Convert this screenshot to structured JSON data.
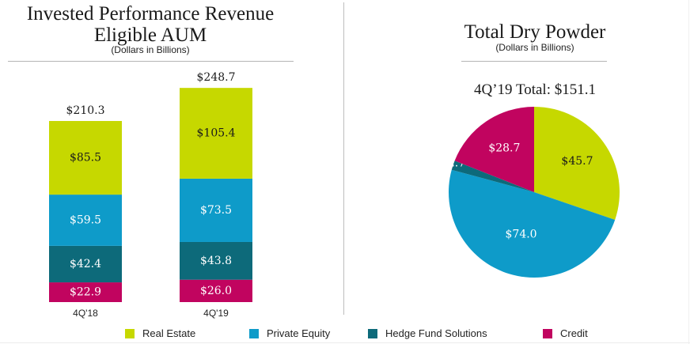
{
  "left_panel": {
    "title_line1": "Invested Performance Revenue",
    "title_line2": "Eligible AUM",
    "subtitle": "(Dollars in Billions)"
  },
  "right_panel": {
    "title": "Total Dry Powder",
    "subtitle": "(Dollars in Billions)",
    "total_label": "4Q’19 Total: $151.1"
  },
  "legend": [
    {
      "label": "Real Estate",
      "color": "#c6d800"
    },
    {
      "label": "Private Equity",
      "color": "#0e9bc9"
    },
    {
      "label": "Hedge Fund Solutions",
      "color": "#0d6a7a"
    },
    {
      "label": "Credit",
      "color": "#c1045f"
    }
  ],
  "chart_data": [
    {
      "type": "bar",
      "stacked": true,
      "title": "Invested Performance Revenue Eligible AUM",
      "subtitle": "(Dollars in Billions)",
      "categories": [
        "4Q'18",
        "4Q'19"
      ],
      "totals": [
        210.3,
        248.7
      ],
      "total_labels": [
        "$210.3",
        "$248.7"
      ],
      "series": [
        {
          "name": "Credit",
          "color": "#c1045f",
          "text_color": "#ffffff",
          "values": [
            22.9,
            26.0
          ],
          "labels": [
            "$22.9",
            "$26.0"
          ]
        },
        {
          "name": "Hedge Fund Solutions",
          "color": "#0d6a7a",
          "text_color": "#ffffff",
          "values": [
            42.4,
            43.8
          ],
          "labels": [
            "$42.4",
            "$43.8"
          ]
        },
        {
          "name": "Private Equity",
          "color": "#0e9bc9",
          "text_color": "#ffffff",
          "values": [
            59.5,
            73.5
          ],
          "labels": [
            "$59.5",
            "$73.5"
          ]
        },
        {
          "name": "Real Estate",
          "color": "#c6d800",
          "text_color": "#1a1a1a",
          "values": [
            85.5,
            105.4
          ],
          "labels": [
            "$85.5",
            "$105.4"
          ]
        }
      ],
      "xlabel": "",
      "ylabel": "",
      "ylim": [
        0,
        248.7
      ],
      "grid": false,
      "legend": "bottom"
    },
    {
      "type": "pie",
      "title": "Total Dry Powder",
      "subtitle": "(Dollars in Billions)",
      "annotation": "4Q’19 Total: $151.1",
      "total": 151.1,
      "start": "12 o'clock",
      "direction": "clockwise",
      "slices": [
        {
          "name": "Real Estate",
          "value": 45.7,
          "label": "$45.7",
          "color": "#c6d800",
          "text_color": "#1a1a1a"
        },
        {
          "name": "Private Equity",
          "value": 74.0,
          "label": "$74.0",
          "color": "#0e9bc9",
          "text_color": "#ffffff"
        },
        {
          "name": "Hedge Fund Solutions",
          "value": 2.7,
          "label": "$2.7",
          "color": "#0d6a7a",
          "text_color": "#ffffff"
        },
        {
          "name": "Credit",
          "value": 28.7,
          "label": "$28.7",
          "color": "#c1045f",
          "text_color": "#ffffff"
        }
      ],
      "legend": "bottom"
    }
  ]
}
